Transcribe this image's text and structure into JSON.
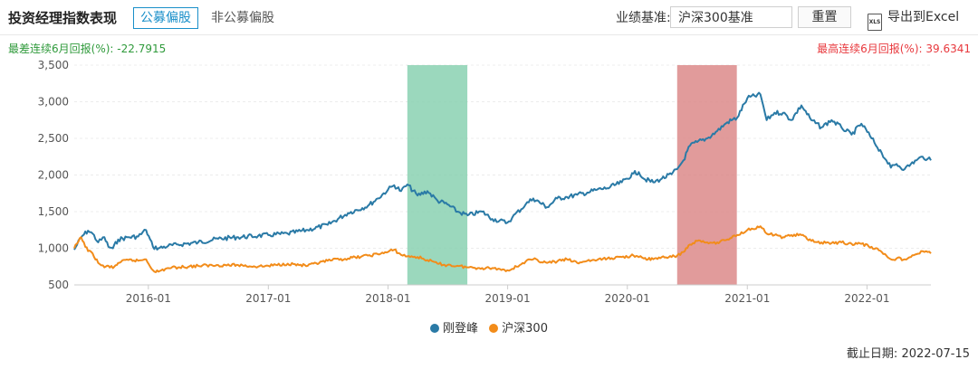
{
  "header": {
    "title": "投资经理指数表现",
    "tab_public": "公募偏股",
    "tab_nonpublic": "非公募偏股",
    "benchmark_label": "业绩基准:",
    "benchmark_value": "沪深300基准",
    "reset_label": "重置",
    "export_label": "导出到Excel",
    "export_icon": "xls-file-icon",
    "export_icon_text": "XLS"
  },
  "stats": {
    "worst_label": "最差连续6月回报(%):",
    "worst_value": "-22.7915",
    "best_label": "最高连续6月回报(%):",
    "best_value": "39.6341"
  },
  "footer": {
    "cutoff_label": "截止日期:",
    "cutoff_date": "2022-07-15"
  },
  "colors": {
    "manager": "#2a7aa6",
    "benchmark": "#f28c1a",
    "worst_band": "#8ad1b1",
    "best_band": "#dc8a8a",
    "worst_text": "#2f9a3b",
    "best_text": "#e8383d"
  },
  "chart_data": {
    "type": "line",
    "ylim": [
      500,
      3500
    ],
    "yticks": [
      500,
      1000,
      1500,
      2000,
      2500,
      3000,
      3500
    ],
    "ytick_labels": [
      "500",
      "1,000",
      "1,500",
      "2,000",
      "2,500",
      "3,000",
      "3,500"
    ],
    "xlim": [
      "2015-05-20",
      "2022-07-15"
    ],
    "xticks": [
      "2016-01-01",
      "2017-01-01",
      "2018-01-01",
      "2019-01-01",
      "2020-01-01",
      "2021-01-01",
      "2022-01-01"
    ],
    "xtick_labels": [
      "2016-01",
      "2017-01",
      "2018-01",
      "2019-01",
      "2020-01",
      "2021-01",
      "2022-01"
    ],
    "grid": "horizontal",
    "legend_position": "bottom",
    "highlight_bands": [
      {
        "type": "worst_6m",
        "from": "2018-03-01",
        "to": "2018-08-31"
      },
      {
        "type": "best_6m",
        "from": "2020-06-01",
        "to": "2020-11-30"
      }
    ],
    "series": [
      {
        "name": "刚登峰",
        "x": [
          "2015-05-20",
          "2015-06-10",
          "2015-07-01",
          "2015-07-15",
          "2015-08-01",
          "2015-08-20",
          "2015-09-01",
          "2015-09-15",
          "2015-10-01",
          "2015-11-01",
          "2015-12-01",
          "2015-12-25",
          "2016-01-15",
          "2016-02-01",
          "2016-03-01",
          "2016-04-01",
          "2016-06-01",
          "2016-08-01",
          "2016-10-01",
          "2016-12-01",
          "2017-01-01",
          "2017-03-01",
          "2017-05-01",
          "2017-07-01",
          "2017-09-01",
          "2017-11-01",
          "2017-12-01",
          "2018-01-01",
          "2018-01-20",
          "2018-02-10",
          "2018-03-01",
          "2018-04-01",
          "2018-05-01",
          "2018-06-01",
          "2018-07-01",
          "2018-08-01",
          "2018-09-01",
          "2018-10-15",
          "2018-11-15",
          "2018-12-31",
          "2019-01-15",
          "2019-02-25",
          "2019-03-20",
          "2019-05-01",
          "2019-06-01",
          "2019-07-01",
          "2019-08-01",
          "2019-09-01",
          "2019-10-01",
          "2019-11-01",
          "2019-12-15",
          "2020-01-20",
          "2020-02-05",
          "2020-02-20",
          "2020-03-20",
          "2020-04-15",
          "2020-05-15",
          "2020-06-01",
          "2020-06-20",
          "2020-07-10",
          "2020-08-01",
          "2020-09-01",
          "2020-10-01",
          "2020-11-01",
          "2020-12-01",
          "2021-01-01",
          "2021-02-10",
          "2021-03-01",
          "2021-03-25",
          "2021-04-20",
          "2021-05-15",
          "2021-06-15",
          "2021-07-15",
          "2021-08-15",
          "2021-09-15",
          "2021-10-15",
          "2021-11-15",
          "2021-12-15",
          "2022-01-15",
          "2022-02-15",
          "2022-03-01",
          "2022-03-15",
          "2022-04-01",
          "2022-04-26",
          "2022-05-15",
          "2022-06-01",
          "2022-06-20",
          "2022-07-05",
          "2022-07-15"
        ],
        "values": [
          980,
          1150,
          1240,
          1200,
          1080,
          1150,
          1020,
          1000,
          1120,
          1150,
          1160,
          1250,
          1020,
          1000,
          1030,
          1050,
          1080,
          1130,
          1150,
          1170,
          1180,
          1200,
          1250,
          1320,
          1480,
          1580,
          1680,
          1800,
          1860,
          1780,
          1870,
          1720,
          1780,
          1650,
          1600,
          1500,
          1450,
          1500,
          1400,
          1350,
          1420,
          1600,
          1680,
          1560,
          1680,
          1700,
          1730,
          1760,
          1800,
          1820,
          1900,
          2020,
          2040,
          1950,
          1900,
          1950,
          2010,
          2080,
          2200,
          2400,
          2450,
          2500,
          2600,
          2720,
          2780,
          3050,
          3100,
          2750,
          2850,
          2850,
          2750,
          2950,
          2750,
          2650,
          2750,
          2650,
          2550,
          2700,
          2500,
          2300,
          2200,
          2100,
          2150,
          2080,
          2150,
          2200,
          2250,
          2220,
          2200
        ]
      },
      {
        "name": "沪深300",
        "x": [
          "2015-05-20",
          "2015-06-10",
          "2015-07-01",
          "2015-07-15",
          "2015-08-01",
          "2015-08-20",
          "2015-09-01",
          "2015-09-15",
          "2015-10-01",
          "2015-11-01",
          "2015-12-01",
          "2015-12-25",
          "2016-01-15",
          "2016-02-01",
          "2016-03-01",
          "2016-04-01",
          "2016-06-01",
          "2016-08-01",
          "2016-10-01",
          "2016-12-01",
          "2017-01-01",
          "2017-03-01",
          "2017-05-01",
          "2017-07-01",
          "2017-09-01",
          "2017-11-01",
          "2017-12-01",
          "2018-01-01",
          "2018-01-20",
          "2018-02-10",
          "2018-03-01",
          "2018-04-01",
          "2018-05-01",
          "2018-06-01",
          "2018-07-01",
          "2018-08-01",
          "2018-09-01",
          "2018-10-15",
          "2018-11-15",
          "2018-12-31",
          "2019-01-15",
          "2019-02-25",
          "2019-03-20",
          "2019-05-01",
          "2019-06-01",
          "2019-07-01",
          "2019-08-01",
          "2019-09-01",
          "2019-10-01",
          "2019-11-01",
          "2019-12-15",
          "2020-01-20",
          "2020-02-05",
          "2020-02-20",
          "2020-03-20",
          "2020-04-15",
          "2020-05-15",
          "2020-06-01",
          "2020-06-20",
          "2020-07-10",
          "2020-08-01",
          "2020-09-01",
          "2020-10-01",
          "2020-11-01",
          "2020-12-01",
          "2021-01-01",
          "2021-02-10",
          "2021-03-01",
          "2021-03-25",
          "2021-04-20",
          "2021-05-15",
          "2021-06-15",
          "2021-07-15",
          "2021-08-15",
          "2021-09-15",
          "2021-10-15",
          "2021-11-15",
          "2021-12-15",
          "2022-01-15",
          "2022-02-15",
          "2022-03-01",
          "2022-03-15",
          "2022-04-01",
          "2022-04-26",
          "2022-05-15",
          "2022-06-01",
          "2022-06-20",
          "2022-07-05",
          "2022-07-15"
        ],
        "values": [
          1000,
          1150,
          960,
          930,
          800,
          740,
          760,
          730,
          800,
          840,
          830,
          850,
          700,
          680,
          730,
          740,
          760,
          770,
          770,
          750,
          760,
          790,
          760,
          830,
          860,
          900,
          920,
          950,
          980,
          910,
          890,
          880,
          840,
          790,
          770,
          760,
          740,
          730,
          730,
          700,
          720,
          820,
          850,
          800,
          820,
          850,
          800,
          830,
          840,
          860,
          880,
          900,
          880,
          860,
          850,
          880,
          880,
          900,
          950,
          1050,
          1100,
          1080,
          1080,
          1120,
          1180,
          1250,
          1300,
          1200,
          1180,
          1150,
          1180,
          1180,
          1100,
          1080,
          1070,
          1080,
          1060,
          1060,
          1020,
          950,
          900,
          850,
          860,
          850,
          880,
          920,
          960,
          950,
          930
        ]
      }
    ]
  }
}
